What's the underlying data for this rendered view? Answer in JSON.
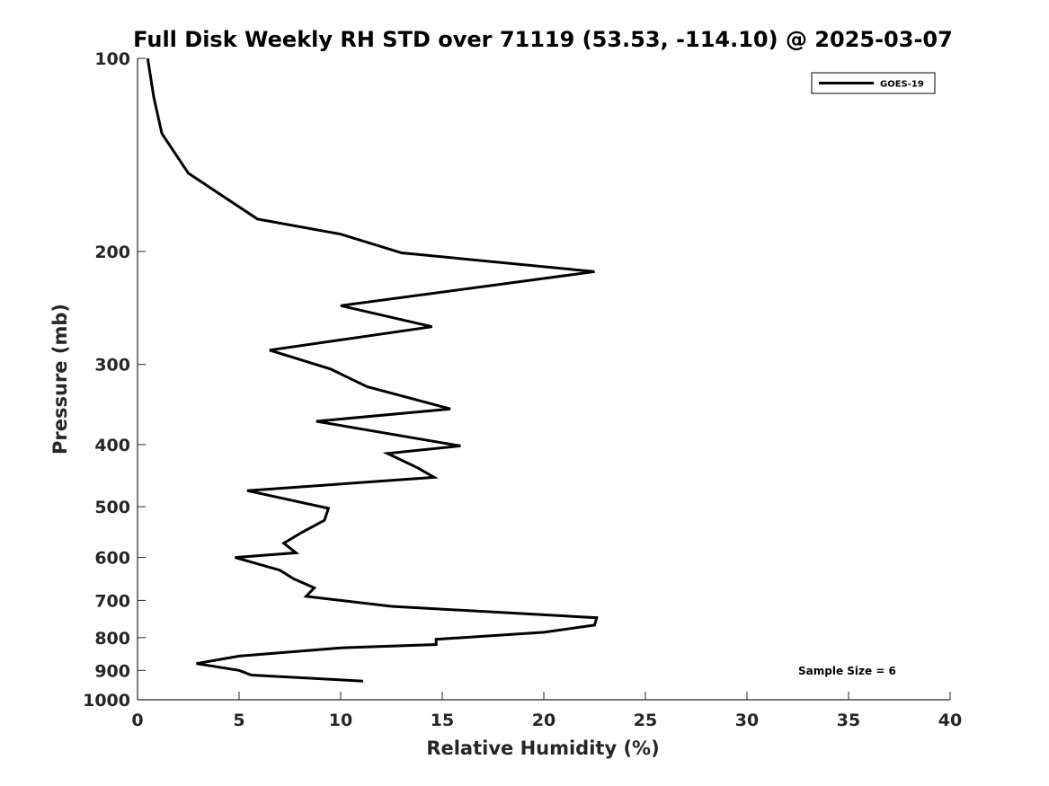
{
  "chart_data": {
    "type": "line",
    "title": "Full Disk Weekly RH STD over 71119 (53.53, -114.10) @ 2025-03-07",
    "xlabel": "Relative Humidity (%)",
    "ylabel": "Pressure (mb)",
    "xlim": [
      0,
      40
    ],
    "ylim": [
      100,
      1000
    ],
    "y_scale": "log",
    "y_reversed": true,
    "grid": false,
    "legend_position": "top-right",
    "x_ticks": [
      0,
      5,
      10,
      15,
      20,
      25,
      30,
      35,
      40
    ],
    "x_tick_labels": [
      "0",
      "5",
      "10",
      "15",
      "20",
      "25",
      "30",
      "35",
      "40"
    ],
    "y_ticks": [
      100,
      200,
      300,
      400,
      500,
      600,
      700,
      800,
      900,
      1000
    ],
    "y_tick_labels": [
      "100",
      "200",
      "300",
      "400",
      "500",
      "600",
      "700",
      "800",
      "900",
      "1000"
    ],
    "series": [
      {
        "name": "GOES-19",
        "color": "#000000",
        "x": [
          0.5,
          0.8,
          1.2,
          2.5,
          5.9,
          10.0,
          13.0,
          22.5,
          10.0,
          14.5,
          6.5,
          9.5,
          11.3,
          15.4,
          8.8,
          15.9,
          12.3,
          13.8,
          14.6,
          5.4,
          9.4,
          9.2,
          8.1,
          7.2,
          7.8,
          4.8,
          7.0,
          7.7,
          8.7,
          8.3,
          12.5,
          22.6,
          22.5,
          20.0,
          14.7,
          14.7,
          10.0,
          5.0,
          2.9,
          5.0,
          5.6,
          11.1
        ],
        "y": [
          100,
          115,
          131,
          151,
          178,
          188,
          201,
          215,
          243,
          262,
          285,
          305,
          325,
          352,
          368,
          402,
          413,
          435,
          450,
          472,
          503,
          525,
          548,
          570,
          590,
          600,
          628,
          648,
          669,
          690,
          715,
          745,
          765,
          785,
          805,
          820,
          830,
          855,
          878,
          900,
          915,
          935
        ]
      }
    ],
    "annotations": [
      "Sample Size = 6"
    ]
  }
}
